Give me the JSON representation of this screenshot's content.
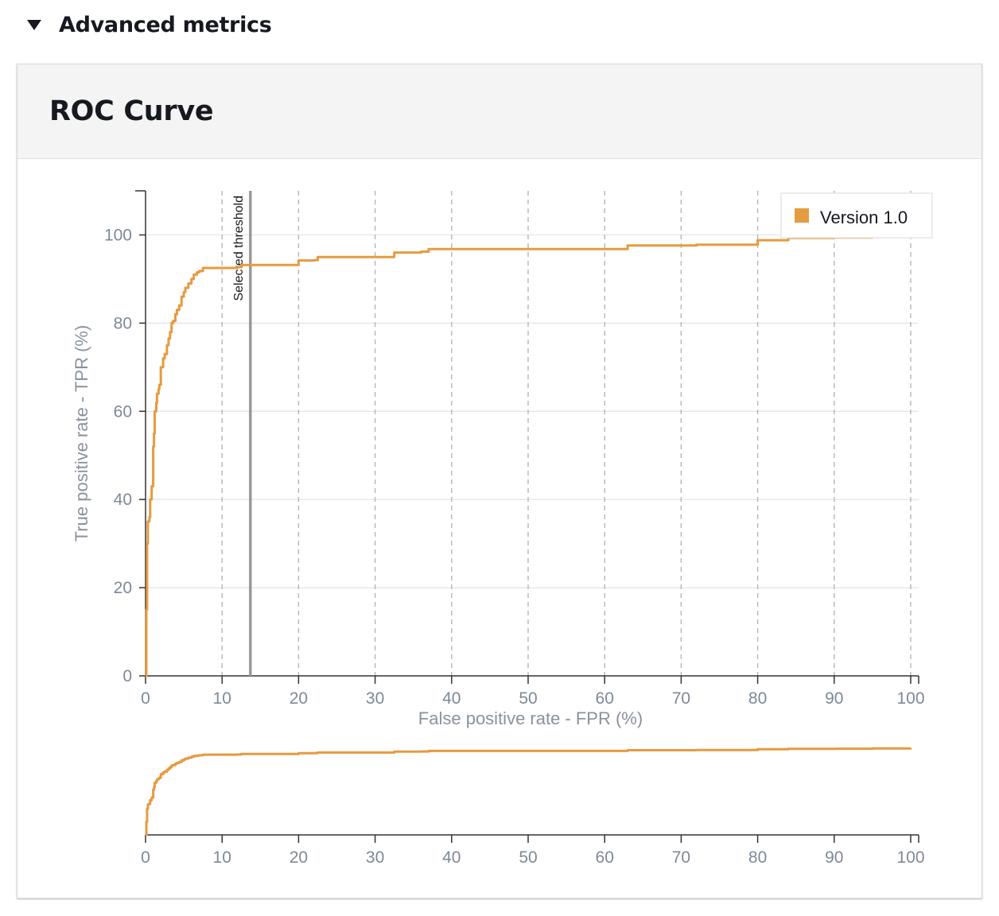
{
  "section": {
    "title": "Advanced metrics"
  },
  "panel": {
    "title": "ROC Curve"
  },
  "colors": {
    "series": "#e59b3f",
    "threshold": "#9a9a9a",
    "axis": "#333333",
    "grid": "#e3e3e3",
    "dashed_grid": "#b5b5b5"
  },
  "chart_data": {
    "type": "line",
    "title": "ROC Curve",
    "xlabel": "False positive rate - FPR (%)",
    "ylabel": "True positive rate - TPR (%)",
    "xlim": [
      0,
      100
    ],
    "ylim": [
      0,
      110
    ],
    "x_ticks": [
      0,
      10,
      20,
      30,
      40,
      50,
      60,
      70,
      80,
      90,
      100
    ],
    "y_ticks": [
      0,
      20,
      40,
      60,
      80,
      100
    ],
    "grid": true,
    "legend_position": "top-right",
    "threshold": {
      "label": "Selected threshold",
      "x": 13.7
    },
    "series": [
      {
        "name": "Version 1.0",
        "x": [
          0,
          0.1,
          0.2,
          0.3,
          0.5,
          0.6,
          0.8,
          1.0,
          1.1,
          1.2,
          1.4,
          1.5,
          1.7,
          1.8,
          2.0,
          2.3,
          2.5,
          2.8,
          3.0,
          3.2,
          3.4,
          3.6,
          3.9,
          4.1,
          4.4,
          4.7,
          5.0,
          5.2,
          5.6,
          6.0,
          6.3,
          6.7,
          7.0,
          7.5,
          10,
          12,
          12.5,
          19.5,
          20,
          22,
          22.5,
          30,
          32.5,
          36,
          37,
          45,
          55,
          62.5,
          63,
          70,
          72,
          80,
          84,
          90,
          95,
          100
        ],
        "y": [
          0,
          15,
          30,
          35,
          36,
          40,
          43,
          52,
          55,
          60,
          62,
          64,
          65,
          66,
          70,
          72,
          73,
          75,
          76.5,
          78,
          80,
          80.5,
          82,
          83,
          84,
          86,
          87,
          88,
          89,
          90,
          91,
          91.5,
          91.8,
          92.5,
          92.5,
          92.7,
          93.2,
          93.2,
          94.2,
          94.3,
          95,
          95,
          96,
          96.2,
          96.8,
          96.8,
          96.8,
          96.8,
          97.6,
          97.6,
          97.8,
          98.8,
          99.3,
          99.4,
          99.6,
          100
        ]
      }
    ]
  }
}
